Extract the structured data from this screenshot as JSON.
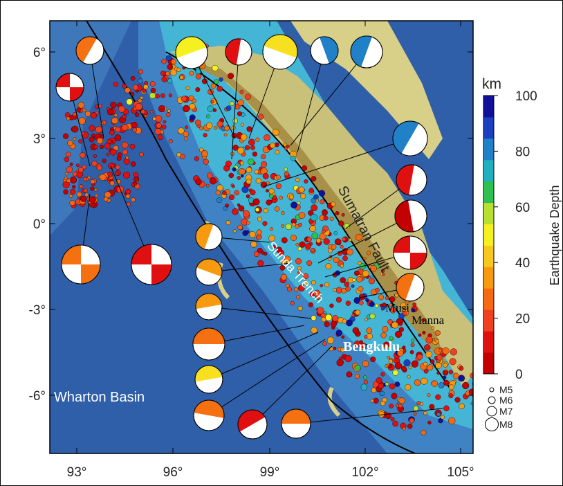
{
  "map": {
    "x_axis": {
      "ticks": [
        "93°",
        "96°",
        "99°",
        "102°",
        "105°"
      ]
    },
    "y_axis": {
      "ticks": [
        "6°",
        "3°",
        "0°",
        "-3°",
        "-6°"
      ]
    },
    "labels": {
      "fault": "Sumatran Fault",
      "trench": "Sunda Trench",
      "basin": "Wharton Basin",
      "musi": "Musi",
      "manna": "Manna",
      "city": "Bengkulu"
    }
  },
  "colorbar": {
    "unit": "km",
    "title": "Earthquake Depth",
    "ticks": [
      0,
      20,
      40,
      60,
      80,
      100
    ],
    "colors": [
      "#c40000",
      "#e01010",
      "#f04020",
      "#f56a10",
      "#f79a10",
      "#f8c820",
      "#f7f020",
      "#b8e030",
      "#30c050",
      "#20b0c0",
      "#2080c8",
      "#1840c0",
      "#10109a"
    ]
  },
  "magnitude_legend": [
    "M5",
    "M6",
    "M7",
    "M8"
  ]
}
